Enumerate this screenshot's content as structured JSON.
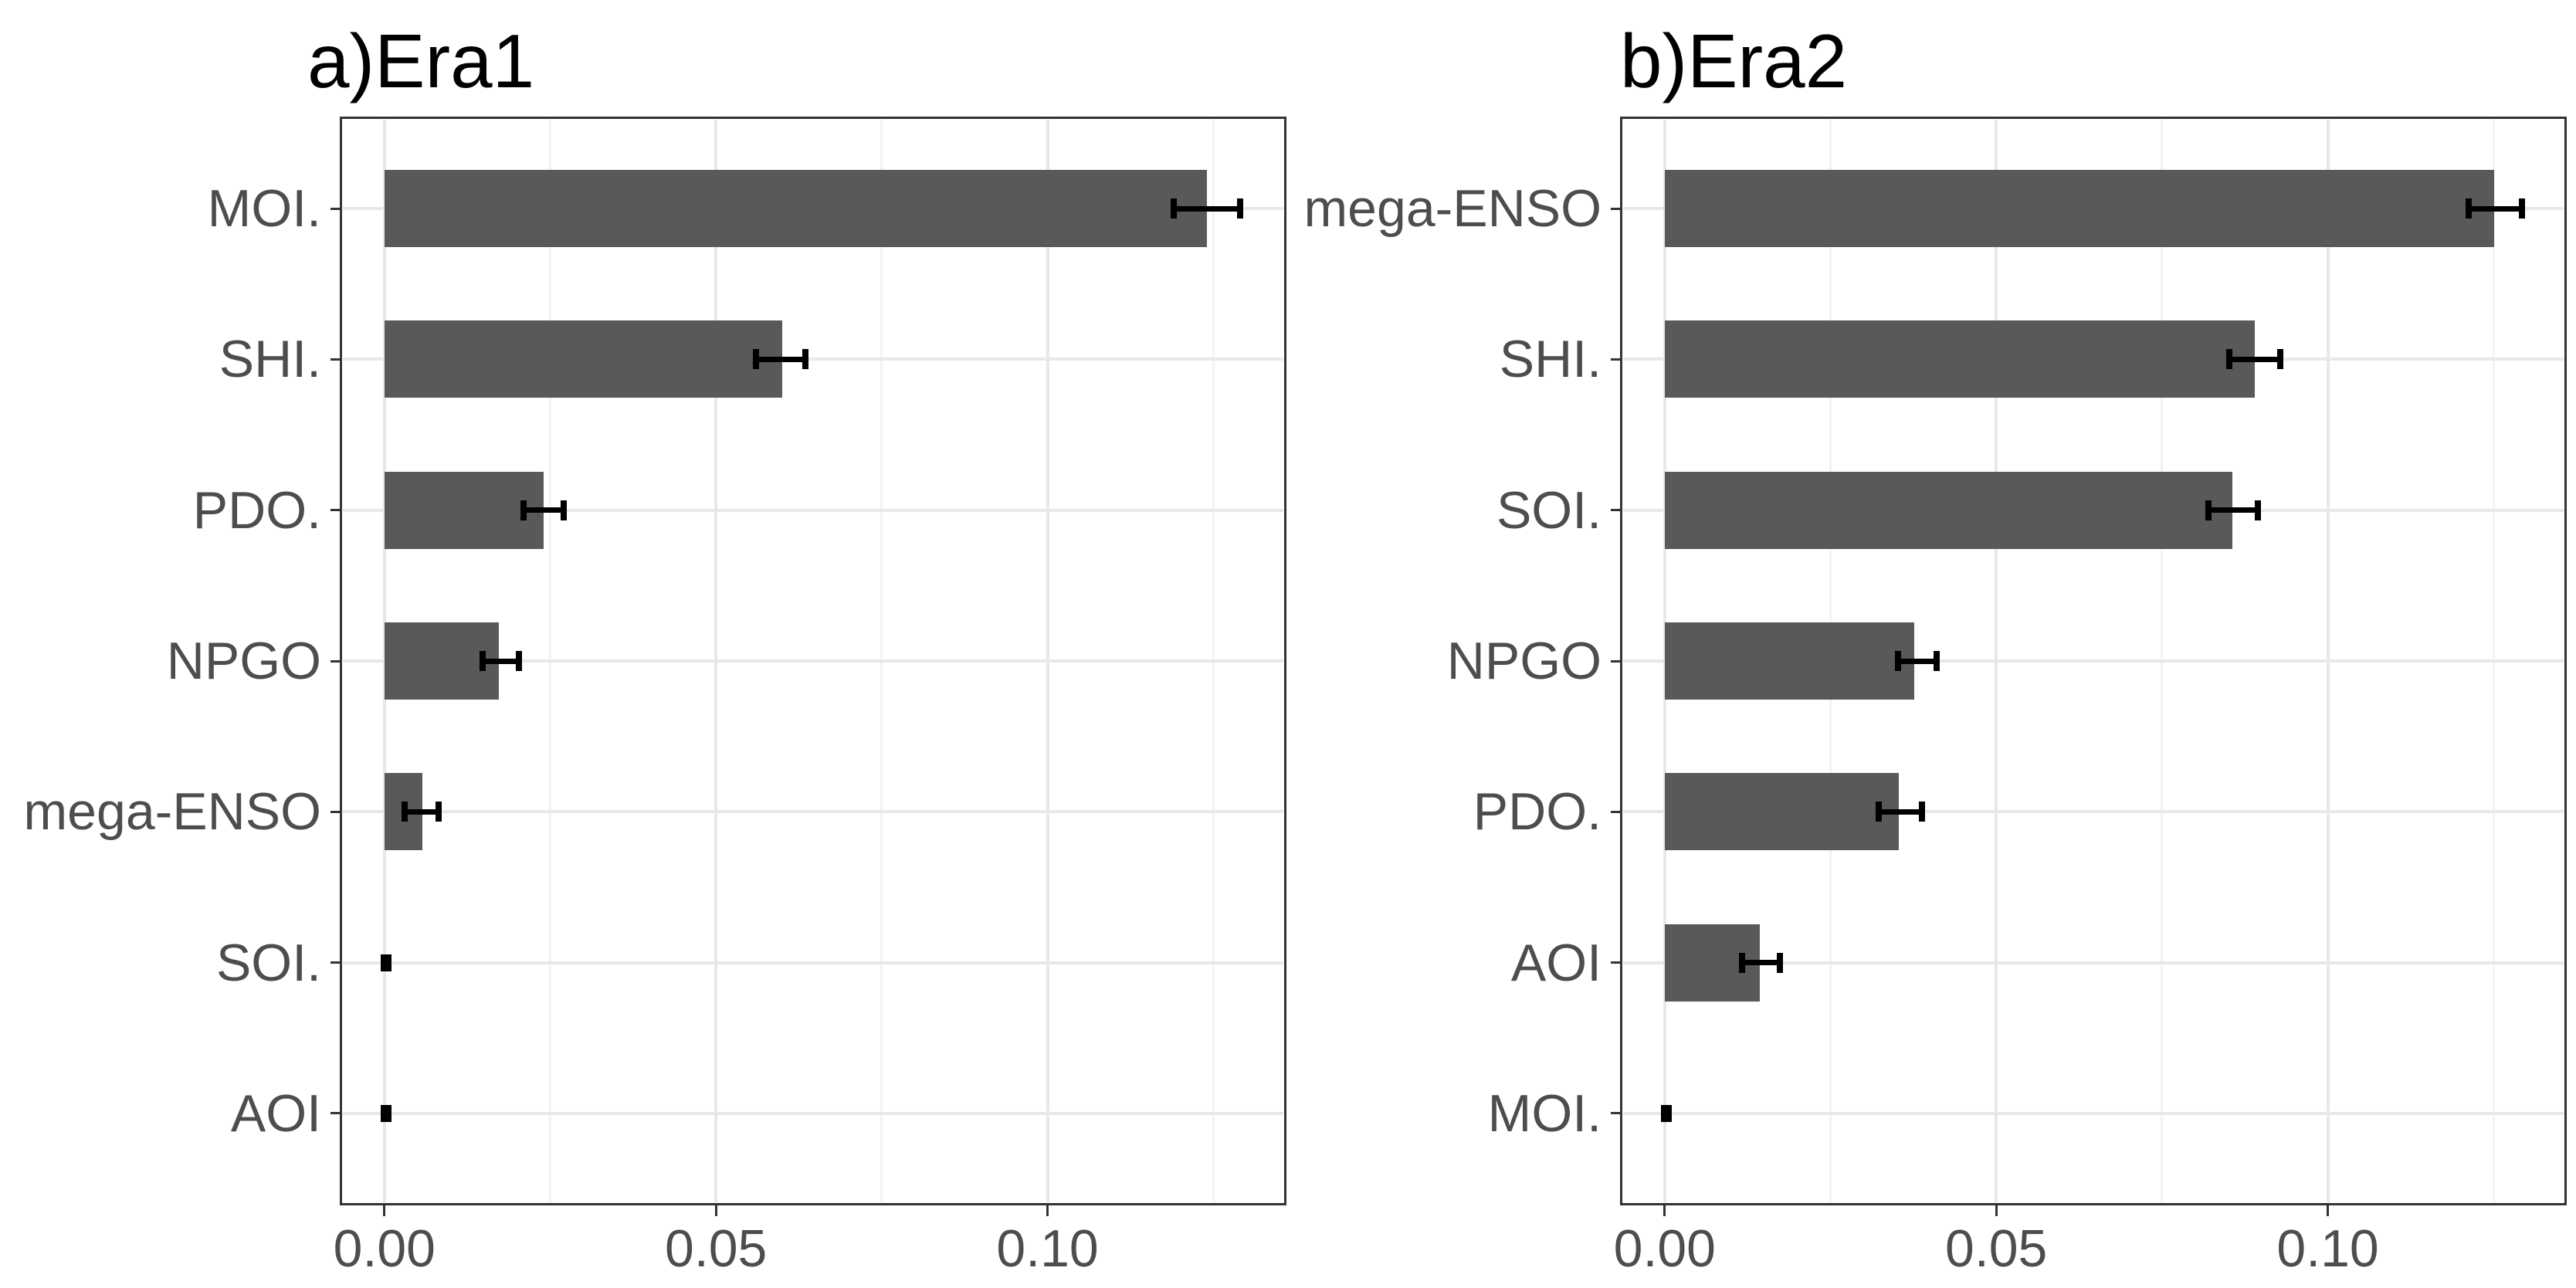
{
  "figure": {
    "background": "#ffffff",
    "bar_color": "#595959",
    "errorbar_color": "#000000",
    "axis_text_color": "#4d4d4d",
    "title_color": "#000000",
    "panel_border_color": "#333333",
    "grid_major_color": "#e8e8e8",
    "grid_minor_color": "#f3f3f3"
  },
  "chart_data": [
    {
      "type": "bar",
      "orientation": "horizontal",
      "title": "a)Era1",
      "xlabel": "",
      "ylabel": "",
      "xlim": [
        -0.0065,
        0.1358
      ],
      "x_ticks": [
        0,
        0.05,
        0.1
      ],
      "x_tick_labels": [
        "0.00",
        "0.05",
        "0.10"
      ],
      "x_minor_gridlines": [
        0.025,
        0.075,
        0.125
      ],
      "grid": true,
      "legend": "none",
      "rows": [
        {
          "label": "MOI.",
          "value": 0.124,
          "err_low": 0.119,
          "err_high": 0.129
        },
        {
          "label": "SHI.",
          "value": 0.06,
          "err_low": 0.056,
          "err_high": 0.0635
        },
        {
          "label": "PDO.",
          "value": 0.024,
          "err_low": 0.021,
          "err_high": 0.027
        },
        {
          "label": "NPGO",
          "value": 0.0173,
          "err_low": 0.0148,
          "err_high": 0.0203
        },
        {
          "label": "mega-ENSO",
          "value": 0.0057,
          "err_low": 0.003,
          "err_high": 0.0082
        },
        {
          "label": "SOI.",
          "value": 0.0002,
          "err_low": -0.0004,
          "err_high": 0.0008,
          "marker": "point"
        },
        {
          "label": "AOI",
          "value": 0.0002,
          "err_low": -0.0004,
          "err_high": 0.0008,
          "marker": "point"
        }
      ]
    },
    {
      "type": "bar",
      "orientation": "horizontal",
      "title": "b)Era2",
      "xlabel": "",
      "ylabel": "",
      "xlim": [
        -0.0065,
        0.1358
      ],
      "x_ticks": [
        0,
        0.05,
        0.1
      ],
      "x_tick_labels": [
        "0.00",
        "0.05",
        "0.10"
      ],
      "x_minor_gridlines": [
        0.025,
        0.075,
        0.125
      ],
      "grid": true,
      "legend": "none",
      "rows": [
        {
          "label": "mega-ENSO",
          "value": 0.1251,
          "err_low": 0.1212,
          "err_high": 0.1293
        },
        {
          "label": "SHI.",
          "value": 0.089,
          "err_low": 0.0852,
          "err_high": 0.0928
        },
        {
          "label": "SOI.",
          "value": 0.0856,
          "err_low": 0.082,
          "err_high": 0.0895
        },
        {
          "label": "NPGO",
          "value": 0.0376,
          "err_low": 0.0352,
          "err_high": 0.041
        },
        {
          "label": "PDO.",
          "value": 0.0353,
          "err_low": 0.0323,
          "err_high": 0.0388
        },
        {
          "label": "AOI",
          "value": 0.0143,
          "err_low": 0.0117,
          "err_high": 0.0174
        },
        {
          "label": "MOI.",
          "value": 0.0002,
          "err_low": -0.0004,
          "err_high": 0.0008,
          "marker": "point"
        }
      ]
    }
  ]
}
